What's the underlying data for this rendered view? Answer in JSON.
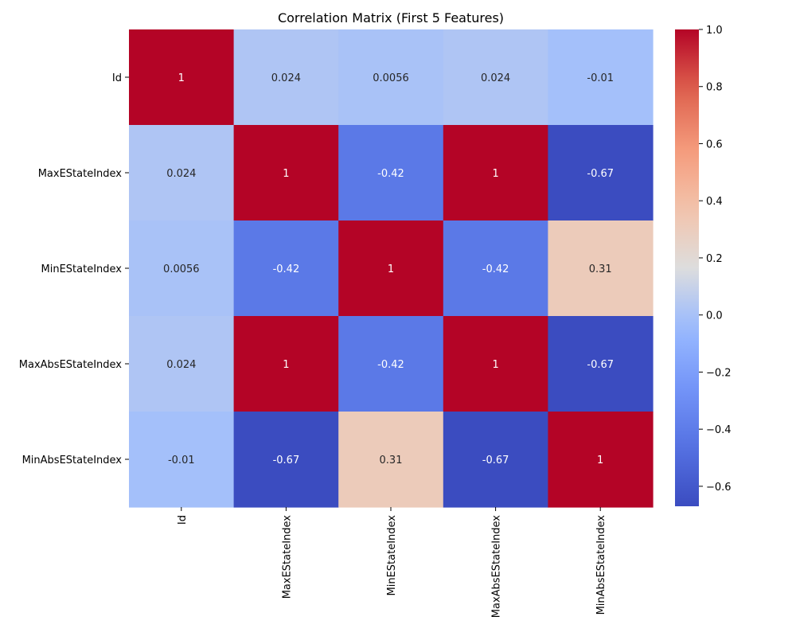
{
  "chart_data": {
    "type": "heatmap",
    "title": "Correlation Matrix (First 5 Features)",
    "x_labels": [
      "Id",
      "MaxEStateIndex",
      "MinEStateIndex",
      "MaxAbsEStateIndex",
      "MinAbsEStateIndex"
    ],
    "y_labels": [
      "Id",
      "MaxEStateIndex",
      "MinEStateIndex",
      "MaxAbsEStateIndex",
      "MinAbsEStateIndex"
    ],
    "values": [
      [
        1,
        0.024,
        0.0056,
        0.024,
        -0.01
      ],
      [
        0.024,
        1,
        -0.42,
        1,
        -0.67
      ],
      [
        0.0056,
        -0.42,
        1,
        -0.42,
        0.31
      ],
      [
        0.024,
        1,
        -0.42,
        1,
        -0.67
      ],
      [
        -0.01,
        -0.67,
        0.31,
        -0.67,
        1
      ]
    ],
    "cell_labels": [
      [
        "1",
        "0.024",
        "0.0056",
        "0.024",
        "-0.01"
      ],
      [
        "0.024",
        "1",
        "-0.42",
        "1",
        "-0.67"
      ],
      [
        "0.0056",
        "-0.42",
        "1",
        "-0.42",
        "0.31"
      ],
      [
        "0.024",
        "1",
        "-0.42",
        "1",
        "-0.67"
      ],
      [
        "-0.01",
        "-0.67",
        "0.31",
        "-0.67",
        "1"
      ]
    ],
    "colormap": "coolwarm",
    "color_range": [
      -0.67,
      1.0
    ],
    "colorbar_ticks": [
      1.0,
      0.8,
      0.6,
      0.4,
      0.2,
      0.0,
      -0.2,
      -0.4,
      -0.6
    ],
    "colorbar_tick_labels": [
      "1.0",
      "0.8",
      "0.6",
      "0.4",
      "0.2",
      "0.0",
      "−0.2",
      "−0.4",
      "−0.6"
    ],
    "colorbar_placement": "right",
    "grid": false,
    "colors": {
      "low": "#3b4cc0",
      "mid": "#dddddd",
      "high": "#b40426"
    }
  }
}
